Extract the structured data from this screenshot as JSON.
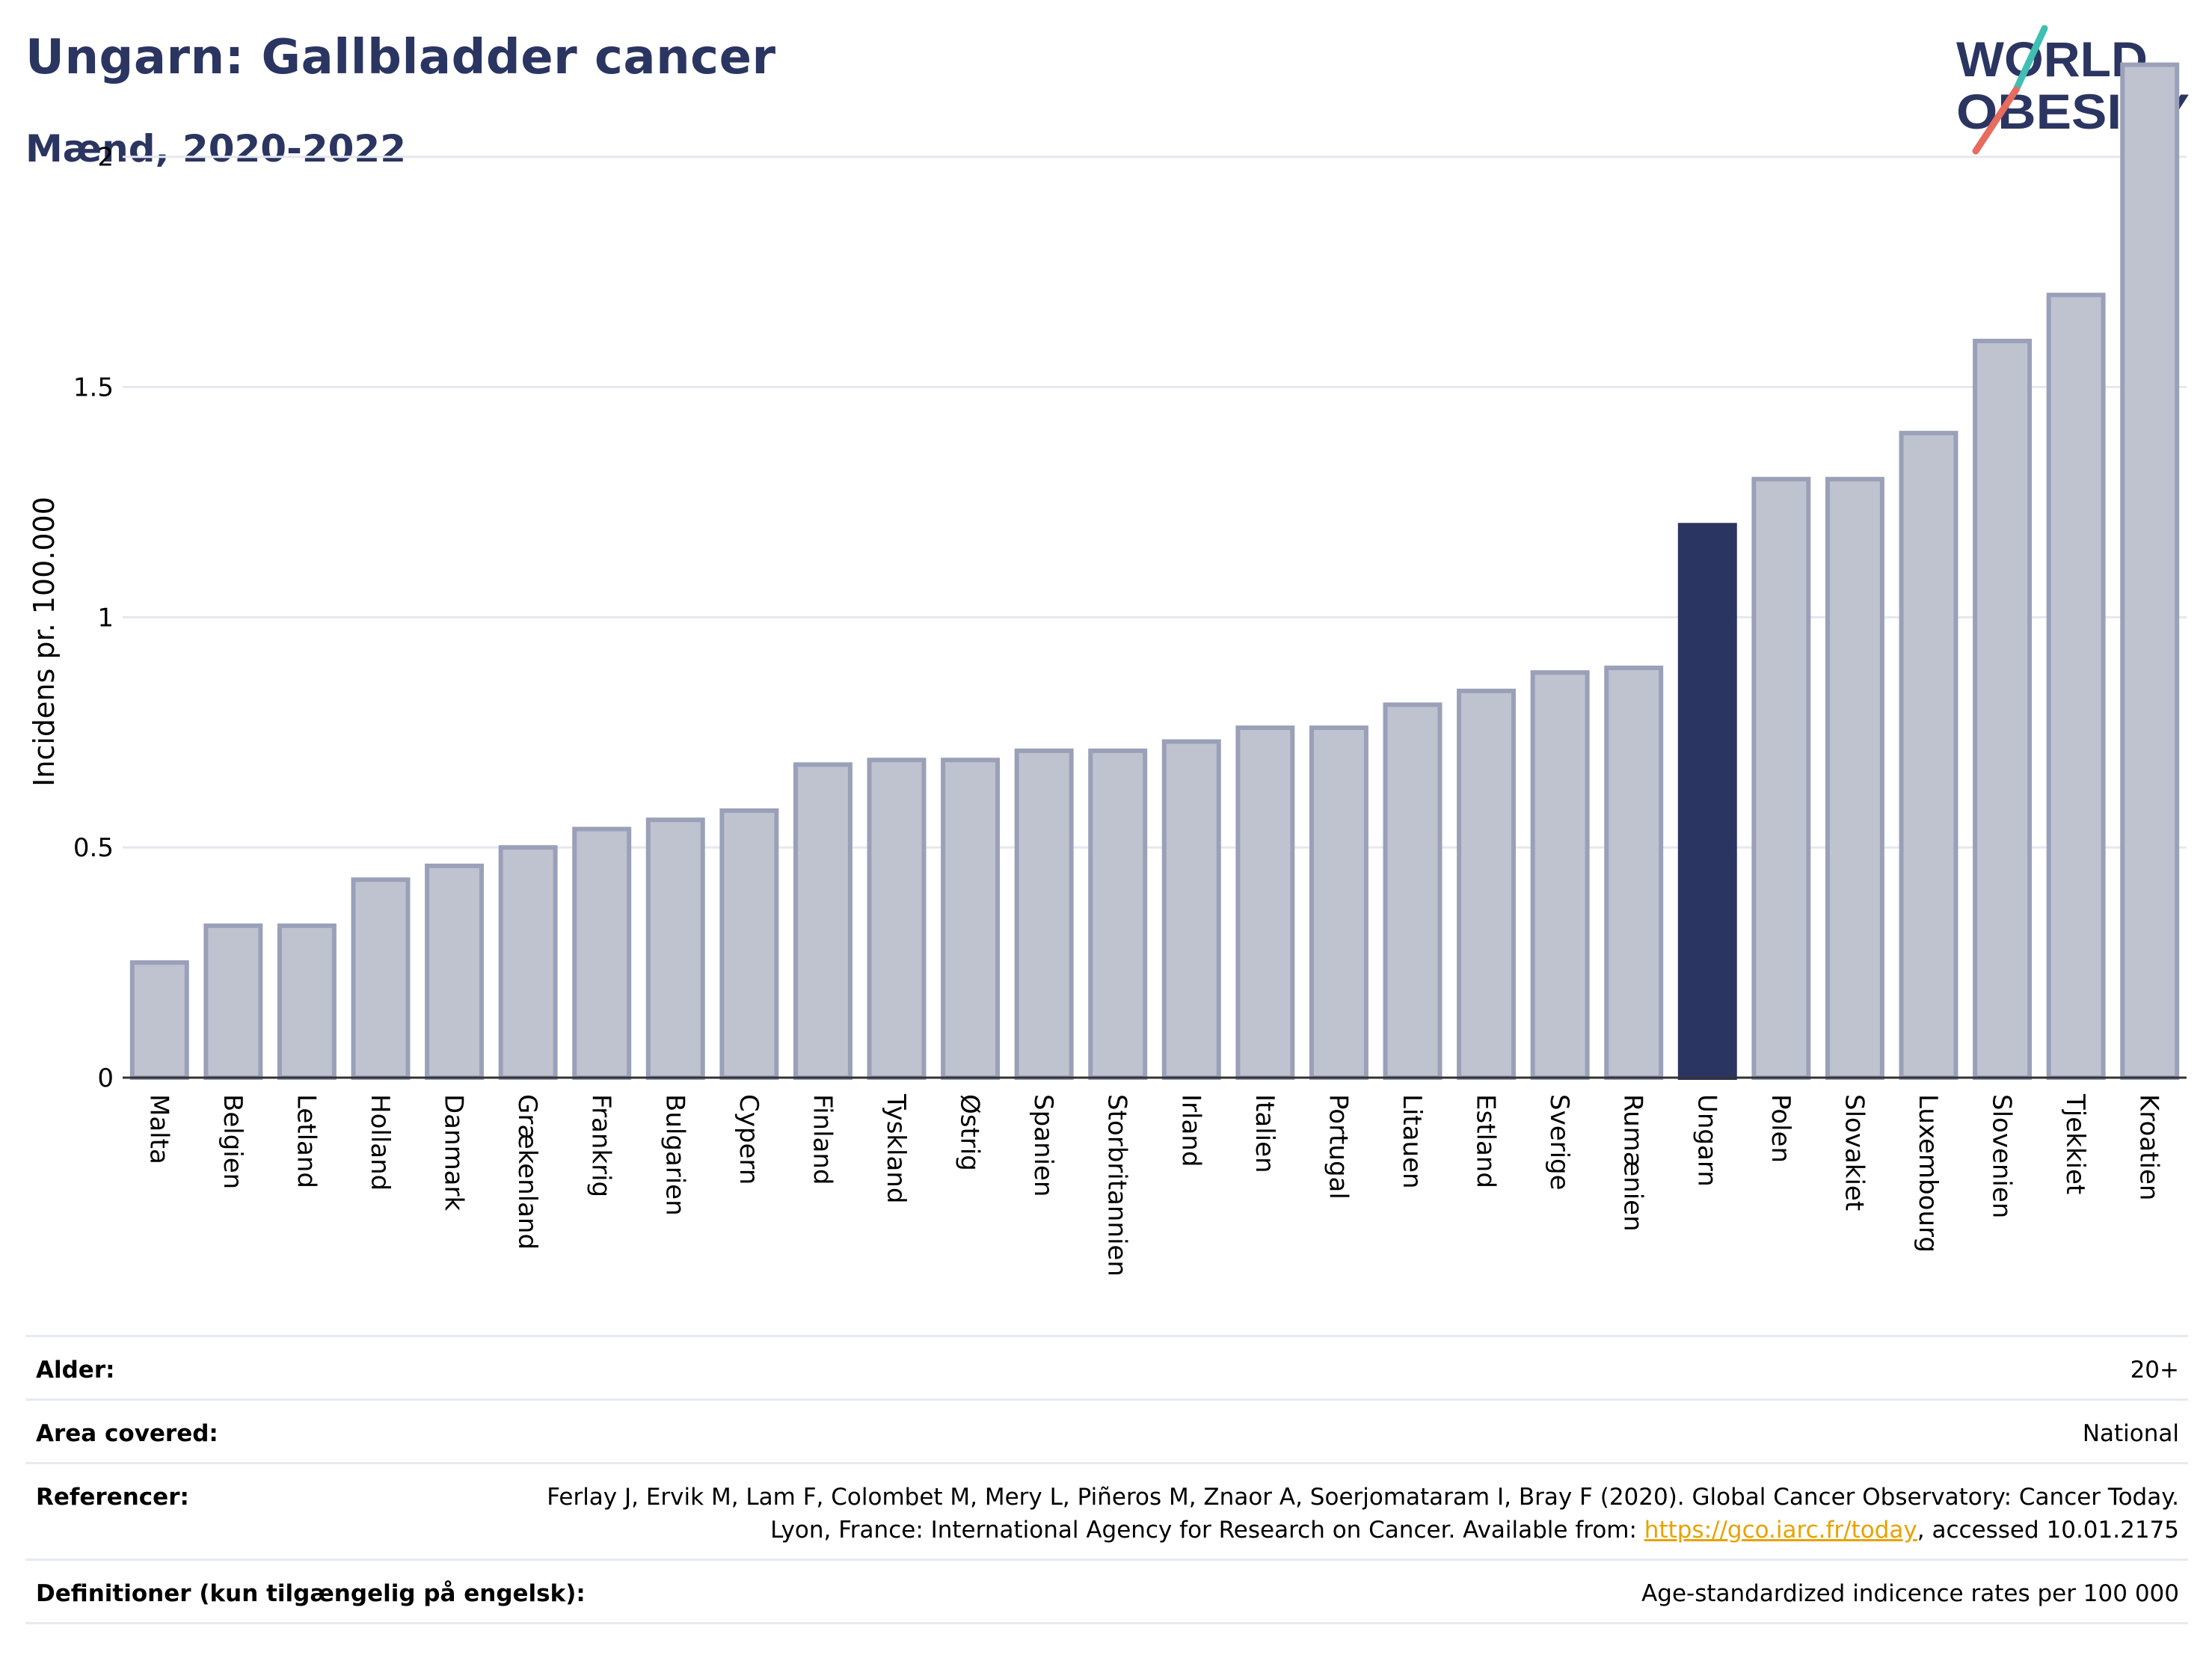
{
  "header": {
    "title": "Ungarn: Gallbladder cancer",
    "subtitle": "Mænd, 2020-2022"
  },
  "logo": {
    "line1": "WORLD",
    "line2": "OBESITY",
    "accent_colors": [
      "#3fbfb2",
      "#e86b5f"
    ],
    "text_color": "#2b3561"
  },
  "chart_data": {
    "type": "bar",
    "ylabel": "Incidens pr. 100.000",
    "xlabel": "",
    "ylim": [
      0,
      2.3
    ],
    "yticks": [
      0,
      0.5,
      1,
      1.5,
      2
    ],
    "ytick_labels": [
      "0",
      "0.5",
      "1",
      "1.5",
      "2"
    ],
    "grid": true,
    "highlight_category": "Ungarn",
    "colors": {
      "bar": "#bfc3d0",
      "bar_outline": "#9aa0b8",
      "highlight": "#2b3561",
      "grid": "#e6e8ef"
    },
    "categories": [
      "Malta",
      "Belgien",
      "Letland",
      "Holland",
      "Danmark",
      "Grækenland",
      "Frankrig",
      "Bulgarien",
      "Cypern",
      "Finland",
      "Tyskland",
      "Østrig",
      "Spanien",
      "Storbritannien",
      "Irland",
      "Italien",
      "Portugal",
      "Litauen",
      "Estland",
      "Sverige",
      "Rumænien",
      "Ungarn",
      "Polen",
      "Slovakiet",
      "Luxembourg",
      "Slovenien",
      "Tjekkiet",
      "Kroatien"
    ],
    "values": [
      0.25,
      0.33,
      0.33,
      0.43,
      0.46,
      0.5,
      0.54,
      0.56,
      0.58,
      0.68,
      0.69,
      0.69,
      0.71,
      0.71,
      0.73,
      0.76,
      0.76,
      0.81,
      0.84,
      0.88,
      0.89,
      1.2,
      1.3,
      1.3,
      1.4,
      1.6,
      1.7,
      2.2
    ]
  },
  "meta": {
    "age_label": "Alder:",
    "age_value": "20+",
    "area_label": "Area covered:",
    "area_value": "National",
    "ref_label": "Referencer:",
    "ref_text_1": "Ferlay J, Ervik M, Lam F, Colombet M, Mery L, Piñeros M, Znaor A, Soerjomataram I, Bray F (2020). Global Cancer Observatory: Cancer Today. Lyon, France: International Agency for Research on Cancer. Available from: ",
    "ref_link": "https://gco.iarc.fr/today",
    "ref_text_2": ", accessed 10.01.2175",
    "def_label": "Definitioner (kun tilgængelig på engelsk):",
    "def_value": "Age-standardized indicence rates per 100 000"
  }
}
